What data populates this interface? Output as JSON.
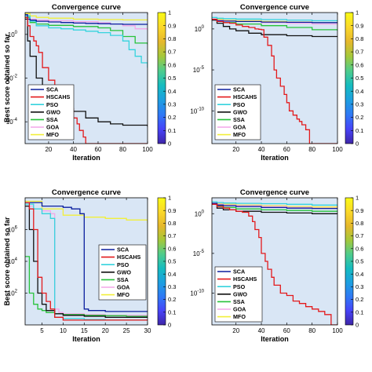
{
  "figure": {
    "ylabel": "Best score obtained so far",
    "legend_entries": [
      "SCA",
      "HSCAHS",
      "PSO",
      "GWO",
      "SSA",
      "GOA",
      "MFO"
    ],
    "series_colors": {
      "SCA": "#0b1f9e",
      "HSCAHS": "#e31a1c",
      "PSO": "#35d3dd",
      "GWO": "#111111",
      "SSA": "#27c23a",
      "GOA": "#f4a6e8",
      "MFO": "#f2ef3a"
    },
    "plot_background": "#d9e6f5",
    "colorbar_ticks": [
      "0",
      "0.1",
      "0.2",
      "0.3",
      "0.4",
      "0.5",
      "0.6",
      "0.7",
      "0.8",
      "0.9",
      "1"
    ],
    "colorbar_colors": [
      "#3e26a8",
      "#4743f8",
      "#2f79f5",
      "#1d9fe0",
      "#15bcc0",
      "#4fcc8c",
      "#a5c83a",
      "#e6b82c",
      "#fbd82a",
      "#f9fb15"
    ]
  },
  "chart_data": [
    {
      "type": "line",
      "title": "Convergence curve",
      "xlabel": "Iteration",
      "ylabel": "Best score obtained so far",
      "yscale": "log",
      "xlim": [
        1,
        100
      ],
      "ylim": [
        1e-05,
        10
      ],
      "xticks": [
        "20",
        "40",
        "60",
        "80",
        "100"
      ],
      "xtick_values": [
        20,
        40,
        60,
        80,
        100
      ],
      "yticks": [
        "10",
        "10",
        "10"
      ],
      "ytick_exponents": [
        "0",
        "-2",
        "-4"
      ],
      "ytick_values": [
        1,
        0.01,
        0.0001
      ],
      "legend_position": "bottom-left",
      "grid": false,
      "series": [
        {
          "name": "SCA",
          "x": [
            1,
            3,
            5,
            10,
            20,
            30,
            40,
            50,
            60,
            70,
            80,
            90,
            100
          ],
          "y": [
            8,
            5,
            4.5,
            4,
            3.7,
            3.5,
            3.3,
            3.2,
            3.1,
            3,
            2.9,
            2.9,
            2.8
          ]
        },
        {
          "name": "HSCAHS",
          "x": [
            1,
            3,
            5,
            8,
            10,
            12,
            15,
            20,
            25,
            28,
            30,
            33,
            35,
            38,
            40,
            43,
            45,
            48,
            50,
            100
          ],
          "y": [
            6,
            2.5,
            0.8,
            0.5,
            0.3,
            0.15,
            0.03,
            0.008,
            0.002,
            0.001,
            0.0008,
            0.0007,
            0.0006,
            0.0004,
            0.00015,
            8e-05,
            4e-05,
            2e-05,
            1e-05,
            1e-05
          ]
        },
        {
          "name": "PSO",
          "x": [
            1,
            5,
            10,
            20,
            30,
            40,
            50,
            60,
            70,
            80,
            85,
            90,
            95,
            100
          ],
          "y": [
            7,
            4,
            2.5,
            2,
            1.8,
            1.6,
            1.4,
            1.2,
            0.9,
            0.5,
            0.2,
            0.1,
            0.05,
            0.03
          ]
        },
        {
          "name": "GWO",
          "x": [
            1,
            3,
            5,
            10,
            15,
            20,
            25,
            30,
            35,
            40,
            50,
            60,
            70,
            80,
            90,
            100
          ],
          "y": [
            5,
            0.5,
            0.1,
            0.01,
            0.003,
            0.0015,
            0.0009,
            0.0006,
            0.0004,
            0.0003,
            0.00015,
            0.0001,
            8e-05,
            7e-05,
            7e-05,
            6e-05
          ]
        },
        {
          "name": "SSA",
          "x": [
            1,
            5,
            10,
            20,
            40,
            60,
            70,
            80,
            90,
            100
          ],
          "y": [
            6,
            3.5,
            3,
            2.6,
            2.3,
            2,
            1.5,
            0.8,
            0.4,
            0.35
          ]
        },
        {
          "name": "GOA",
          "x": [
            1,
            5,
            10,
            20,
            40,
            60,
            70,
            80,
            90,
            100
          ],
          "y": [
            7,
            5,
            4.5,
            4.2,
            3.8,
            3.4,
            3,
            2.5,
            1.8,
            1.6
          ]
        },
        {
          "name": "MFO",
          "x": [
            1,
            5,
            10,
            20,
            40,
            60,
            80,
            100
          ],
          "y": [
            9,
            7,
            6,
            5.5,
            5,
            4.8,
            4.6,
            4.5
          ]
        }
      ]
    },
    {
      "type": "line",
      "title": "Convergence curve",
      "xlabel": "Iteration",
      "ylabel": "Best score obtained so far",
      "yscale": "log",
      "xlim": [
        1,
        100
      ],
      "ylim": [
        1e-14,
        100
      ],
      "xticks": [
        "20",
        "40",
        "60",
        "80",
        "100"
      ],
      "xtick_values": [
        20,
        40,
        60,
        80,
        100
      ],
      "yticks": [
        "10",
        "10",
        "10"
      ],
      "ytick_exponents": [
        "0",
        "-5",
        "-10"
      ],
      "ytick_values": [
        1,
        1e-05,
        1e-10
      ],
      "legend_position": "bottom-left",
      "grid": false,
      "series": [
        {
          "name": "SCA",
          "x": [
            1,
            5,
            10,
            20,
            40,
            60,
            80,
            100
          ],
          "y": [
            15,
            10,
            9,
            8,
            7,
            6.5,
            6,
            5.5
          ]
        },
        {
          "name": "HSCAHS",
          "x": [
            1,
            5,
            10,
            15,
            20,
            25,
            30,
            35,
            38,
            40,
            42,
            45,
            48,
            50,
            52,
            55,
            58,
            60,
            62,
            65,
            68,
            70,
            72,
            75,
            78,
            100
          ],
          "y": [
            15,
            8,
            6,
            5,
            3,
            2,
            1.5,
            1,
            0.9,
            0.8,
            0.1,
            0.01,
            0.0005,
            1e-05,
            1e-06,
            1e-07,
            1e-08,
            1e-09,
            1e-10,
            3e-11,
            1e-11,
            5e-12,
            2e-12,
            5e-13,
            1e-14,
            1e-14
          ]
        },
        {
          "name": "PSO",
          "x": [
            1,
            5,
            10,
            20,
            40,
            60,
            80,
            100
          ],
          "y": [
            25,
            20,
            18,
            16,
            14,
            12,
            10,
            9
          ]
        },
        {
          "name": "GWO",
          "x": [
            1,
            5,
            10,
            15,
            20,
            30,
            40,
            60,
            80,
            100
          ],
          "y": [
            12,
            5,
            2,
            1,
            0.6,
            0.3,
            0.2,
            0.15,
            0.12,
            0.12
          ]
        },
        {
          "name": "SSA",
          "x": [
            1,
            5,
            10,
            20,
            40,
            60,
            80,
            100
          ],
          "y": [
            15,
            9,
            6,
            4,
            2.5,
            1.5,
            0.8,
            0.6
          ]
        },
        {
          "name": "GOA",
          "x": [
            1,
            5,
            10,
            20,
            40,
            60,
            80,
            100
          ],
          "y": [
            18,
            12,
            10,
            8,
            6,
            5,
            4,
            3.5
          ]
        },
        {
          "name": "MFO",
          "x": [
            1,
            5,
            10,
            20,
            40,
            60,
            80,
            100
          ],
          "y": [
            20,
            15,
            12,
            10,
            8,
            7,
            6,
            5
          ]
        }
      ]
    },
    {
      "type": "line",
      "title": "Convergence curve",
      "xlabel": "Iteration",
      "ylabel": "Best score obtained so far",
      "yscale": "log",
      "xlim": [
        1,
        30
      ],
      "ylim": [
        1,
        100000000.0
      ],
      "xticks": [
        "5",
        "10",
        "15",
        "20",
        "25",
        "30"
      ],
      "xtick_values": [
        5,
        10,
        15,
        20,
        25,
        30
      ],
      "yticks": [
        "10",
        "10",
        "10"
      ],
      "ytick_exponents": [
        "6",
        "4",
        "2"
      ],
      "ytick_values": [
        1000000,
        10000,
        100
      ],
      "legend_position": "center-right",
      "grid": false,
      "series": [
        {
          "name": "SCA",
          "x": [
            1,
            5,
            10,
            12,
            14,
            15,
            16,
            20,
            25,
            30
          ],
          "y": [
            50000000,
            30000000,
            25000000,
            20000000,
            10000000,
            10,
            8,
            7,
            7,
            7
          ]
        },
        {
          "name": "HSCAHS",
          "x": [
            1,
            2,
            3,
            4,
            5,
            6,
            7,
            8,
            10,
            15,
            20,
            25,
            30
          ],
          "y": [
            50000000,
            20000000,
            1000000,
            1000,
            100,
            30,
            10,
            3,
            2,
            2,
            2,
            2,
            2
          ]
        },
        {
          "name": "PSO",
          "x": [
            1,
            3,
            5,
            7,
            8,
            10,
            15,
            20,
            25,
            30
          ],
          "y": [
            40000000,
            20000000,
            10000000,
            5000000,
            3,
            2.5,
            2.2,
            2,
            2,
            2
          ]
        },
        {
          "name": "GWO",
          "x": [
            1,
            2,
            3,
            4,
            5,
            6,
            8,
            10,
            15,
            20,
            25,
            30
          ],
          "y": [
            30000000,
            1000000,
            10000,
            100,
            20,
            8,
            5,
            4,
            3.5,
            3,
            3,
            3
          ]
        },
        {
          "name": "SSA",
          "x": [
            1,
            2,
            3,
            4,
            5,
            6,
            8,
            10,
            15,
            20,
            25,
            30
          ],
          "y": [
            20000,
            100,
            20,
            10,
            8,
            6,
            5,
            4.5,
            4,
            3.8,
            3.5,
            3.5
          ]
        },
        {
          "name": "GOA",
          "x": [
            1,
            3,
            5,
            7,
            8,
            9,
            10,
            15,
            20,
            25,
            30
          ],
          "y": [
            30000000,
            20000000,
            15000000,
            10000000,
            10,
            6,
            5,
            4.5,
            4,
            4,
            4
          ]
        },
        {
          "name": "MFO",
          "x": [
            1,
            5,
            10,
            15,
            20,
            25,
            30
          ],
          "y": [
            60000000,
            20000000,
            8000000,
            6000000,
            5000000,
            4000000,
            2500000
          ]
        }
      ]
    },
    {
      "type": "line",
      "title": "Convergence curve",
      "xlabel": "Iteration",
      "ylabel": "Best score obtained so far",
      "yscale": "log",
      "xlim": [
        1,
        100
      ],
      "ylim": [
        1e-14,
        100
      ],
      "xticks": [
        "20",
        "40",
        "60",
        "80",
        "100"
      ],
      "xtick_values": [
        20,
        40,
        60,
        80,
        100
      ],
      "yticks": [
        "10",
        "10",
        "10"
      ],
      "ytick_exponents": [
        "0",
        "-5",
        "-10"
      ],
      "ytick_values": [
        1,
        1e-05,
        1e-10
      ],
      "legend_position": "bottom-left",
      "grid": false,
      "series": [
        {
          "name": "SCA",
          "x": [
            1,
            5,
            10,
            20,
            40,
            60,
            80,
            100
          ],
          "y": [
            20,
            12,
            10,
            8,
            6,
            5,
            4.5,
            4
          ]
        },
        {
          "name": "HSCAHS",
          "x": [
            1,
            5,
            10,
            15,
            20,
            25,
            30,
            33,
            35,
            38,
            40,
            43,
            45,
            48,
            50,
            55,
            60,
            65,
            70,
            75,
            80,
            85,
            90,
            95,
            100
          ],
          "y": [
            15,
            8,
            5,
            3,
            2,
            1.5,
            0.5,
            0.1,
            0.01,
            0.001,
            1e-05,
            1e-06,
            1e-07,
            1e-08,
            1e-09,
            1e-10,
            5e-11,
            1e-11,
            5e-12,
            2e-12,
            1e-12,
            5e-13,
            2e-13,
            1e-14,
            1e-14
          ]
        },
        {
          "name": "PSO",
          "x": [
            1,
            5,
            10,
            20,
            40,
            60,
            80,
            100
          ],
          "y": [
            30,
            25,
            22,
            20,
            18,
            15,
            12,
            10
          ]
        },
        {
          "name": "GWO",
          "x": [
            1,
            5,
            10,
            20,
            40,
            60,
            80,
            100
          ],
          "y": [
            15,
            5,
            3,
            2,
            1.5,
            1.2,
            1,
            1
          ]
        },
        {
          "name": "SSA",
          "x": [
            1,
            5,
            10,
            20,
            40,
            60,
            80,
            100
          ],
          "y": [
            20,
            10,
            6,
            4,
            3,
            2.5,
            2,
            1.8
          ]
        },
        {
          "name": "GOA",
          "x": [
            1,
            5,
            10,
            20,
            40,
            60,
            80,
            100
          ],
          "y": [
            25,
            15,
            12,
            10,
            8,
            6,
            5,
            4
          ]
        },
        {
          "name": "MFO",
          "x": [
            1,
            5,
            10,
            20,
            40,
            60,
            80,
            100
          ],
          "y": [
            25,
            18,
            15,
            12,
            10,
            8,
            7,
            6
          ]
        }
      ]
    }
  ]
}
